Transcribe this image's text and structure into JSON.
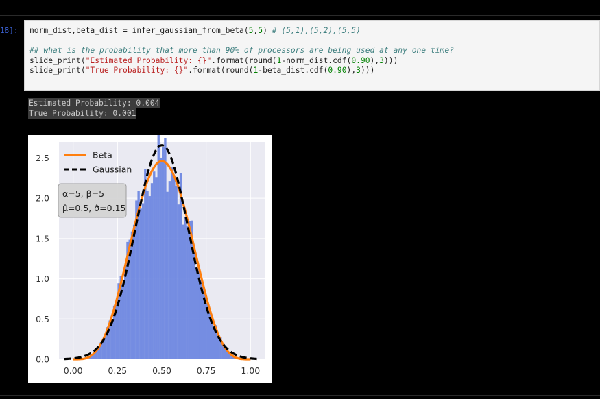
{
  "cell": {
    "prompt": "18]:",
    "line1": {
      "code": "norm_dist,beta_dist = infer_gaussian_from_beta(",
      "num1": "5",
      "sep": ",",
      "num2": "5",
      "close": ") ",
      "comment": "# (5,1),(5,2),(5,5)"
    },
    "line3_comment": "## what is the probability that more than 90% of processors are being used at any one time?",
    "line4": {
      "fn": "slide_print(",
      "str": "\"Estimated Probability: {}\"",
      "rest1": ".format(round(",
      "one": "1",
      "rest2": "-norm_dist.cdf(",
      "val": "0.90",
      "rest3": "),",
      "three": "3",
      "rest4": ")))"
    },
    "line5": {
      "fn": "slide_print(",
      "str": "\"True Probability: {}\"",
      "rest1": ".format(round(",
      "one": "1",
      "rest2": "-beta_dist.cdf(",
      "val": "0.90",
      "rest3": "),",
      "three": "3",
      "rest4": ")))"
    }
  },
  "output": {
    "line1": "Estimated Probability: 0.004",
    "line2": "True Probability: 0.001"
  },
  "chart_data": {
    "type": "histogram",
    "xlim": [
      -0.08,
      1.08
    ],
    "ylim": [
      0,
      2.7
    ],
    "xticks": [
      "0.00",
      "0.25",
      "0.50",
      "0.75",
      "1.00"
    ],
    "yticks": [
      "0.0",
      "0.5",
      "1.0",
      "1.5",
      "2.0",
      "2.5"
    ],
    "grid": true,
    "legend_position": "top-left",
    "series": [
      {
        "name": "Beta",
        "color": "#ff7f0e"
      },
      {
        "name": "Gaussian",
        "color": "#000000"
      }
    ],
    "annotation": {
      "line1": "α=5, β=5",
      "line2": "μ̂=0.5, σ̂=0.15"
    },
    "beta_params": [
      5,
      5
    ],
    "gaussian_params": {
      "mu": 0.5,
      "sigma": 0.15
    },
    "hist_color": "#6f88e0"
  }
}
